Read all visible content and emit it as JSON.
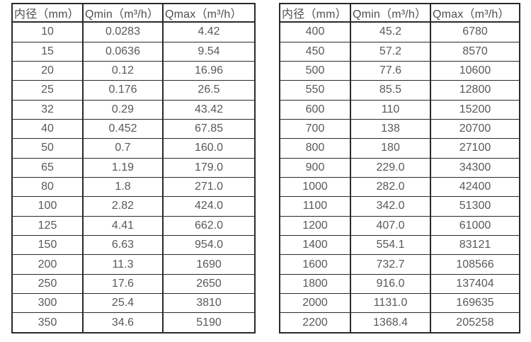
{
  "colors": {
    "background": "#ffffff",
    "border": "#2a2a2a",
    "header_text": "#4f4f4f",
    "cell_text": "#595959"
  },
  "tables": [
    {
      "headers": [
        "内径（mm）",
        "Qmin（m³/h）",
        "Qmax（m³/h）"
      ],
      "rows": [
        [
          "10",
          "0.0283",
          "4.42"
        ],
        [
          "15",
          "0.0636",
          "9.54"
        ],
        [
          "20",
          "0.12",
          "16.96"
        ],
        [
          "25",
          "0.176",
          "26.5"
        ],
        [
          "32",
          "0.29",
          "43.42"
        ],
        [
          "40",
          "0.452",
          "67.85"
        ],
        [
          "50",
          "0.7",
          "160.0"
        ],
        [
          "65",
          "1.19",
          "179.0"
        ],
        [
          "80",
          "1.8",
          "271.0"
        ],
        [
          "100",
          "2.82",
          "424.0"
        ],
        [
          "125",
          "4.41",
          "662.0"
        ],
        [
          "150",
          "6.63",
          "954.0"
        ],
        [
          "200",
          "11.3",
          "1690"
        ],
        [
          "250",
          "17.6",
          "2650"
        ],
        [
          "300",
          "25.4",
          "3810"
        ],
        [
          "350",
          "34.6",
          "5190"
        ]
      ]
    },
    {
      "headers": [
        "内径（mm）",
        "Qmin（m³/h）",
        "Qmax（m³/h）"
      ],
      "rows": [
        [
          "400",
          "45.2",
          "6780"
        ],
        [
          "450",
          "57.2",
          "8570"
        ],
        [
          "500",
          "77.6",
          "10600"
        ],
        [
          "550",
          "85.5",
          "12800"
        ],
        [
          "600",
          "110",
          "15200"
        ],
        [
          "700",
          "138",
          "20700"
        ],
        [
          "800",
          "180",
          "27100"
        ],
        [
          "900",
          "229.0",
          "34300"
        ],
        [
          "1000",
          "282.0",
          "42400"
        ],
        [
          "1100",
          "342.0",
          "51300"
        ],
        [
          "1200",
          "407.0",
          "61000"
        ],
        [
          "1400",
          "554.1",
          "83121"
        ],
        [
          "1600",
          "732.7",
          "108566"
        ],
        [
          "1800",
          "916.0",
          "137404"
        ],
        [
          "2000",
          "1131.0",
          "169635"
        ],
        [
          "2200",
          "1368.4",
          "205258"
        ]
      ]
    }
  ]
}
